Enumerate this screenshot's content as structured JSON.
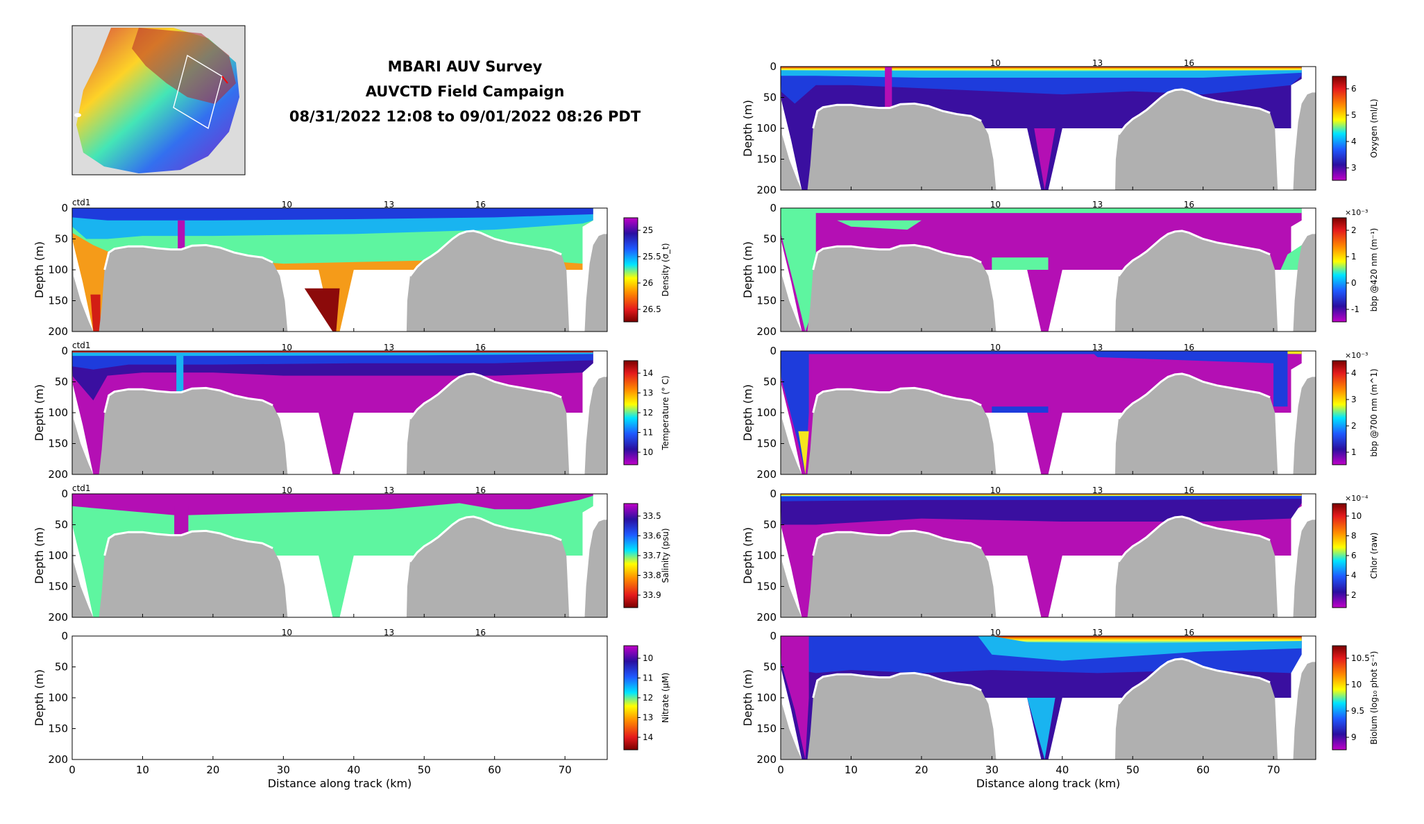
{
  "header": {
    "line1": "MBARI AUV Survey",
    "line2": "AUVCTD Field Campaign",
    "line3": "08/31/2022 12:08 to 09/01/2022 08:26 PDT"
  },
  "axes_common": {
    "ylabel": "Depth (m)",
    "xlabel": "Distance along track (km)",
    "ylim": [
      0,
      200
    ],
    "xlim": [
      0,
      76
    ],
    "yticks": [
      "0",
      "50",
      "100",
      "150",
      "200"
    ],
    "xticks": [
      "0",
      "10",
      "20",
      "30",
      "40",
      "50",
      "60",
      "70"
    ],
    "top_ticks": [
      "10",
      "13",
      "16"
    ],
    "seafloor_color": "#b0b0b0"
  },
  "colors": {
    "magenta": "#b40fb4",
    "indigo": "#3a0fa0",
    "blue": "#1e3cdc",
    "cyan": "#19b4f0",
    "mint": "#5ef5a0",
    "yellow": "#f5e61e",
    "orange": "#f59b19",
    "red": "#d21e14",
    "darkred": "#8c0a0a"
  },
  "chart_data": [
    {
      "id": "density",
      "type": "heatmap",
      "tag": "ctd1",
      "cbar_label": "Density (σ_t)",
      "cbar_ticks": [
        "25",
        "25.5",
        "26",
        "26.5"
      ],
      "cbar_order": "dense-red-bottom"
    },
    {
      "id": "temperature",
      "type": "heatmap",
      "tag": "ctd1",
      "cbar_label": "Temperature (° C)",
      "cbar_ticks": [
        "14",
        "13",
        "12",
        "11",
        "10"
      ]
    },
    {
      "id": "salinity",
      "type": "heatmap",
      "tag": "ctd1",
      "cbar_label": "Salinity (psu)",
      "cbar_ticks": [
        "33.5",
        "33.6",
        "33.7",
        "33.8",
        "33.9"
      ]
    },
    {
      "id": "nitrate",
      "type": "heatmap",
      "tag": "",
      "cbar_label": "Nitrate (μM)",
      "cbar_ticks": [
        "10",
        "11",
        "12",
        "13",
        "14"
      ],
      "empty": true
    },
    {
      "id": "oxygen",
      "type": "heatmap",
      "tag": "",
      "cbar_label": "Oxygen (ml/L)",
      "cbar_ticks": [
        "6",
        "5",
        "4",
        "3"
      ]
    },
    {
      "id": "bbp420",
      "type": "heatmap",
      "tag": "",
      "cbar_label": "bbp @420 nm (m⁻¹)",
      "cbar_exponent": "×10⁻³",
      "cbar_ticks": [
        "2",
        "1",
        "0",
        "-1"
      ]
    },
    {
      "id": "bbp700",
      "type": "heatmap",
      "tag": "",
      "cbar_label": "bbp @700 nm (m^1)",
      "cbar_exponent": "×10⁻³",
      "cbar_ticks": [
        "4",
        "3",
        "2",
        "1"
      ]
    },
    {
      "id": "chlor",
      "type": "heatmap",
      "tag": "",
      "cbar_label": "Chlor (raw)",
      "cbar_exponent": "×10⁻⁴",
      "cbar_ticks": [
        "10",
        "8",
        "6",
        "4",
        "2"
      ]
    },
    {
      "id": "biolum",
      "type": "heatmap",
      "tag": "",
      "cbar_label": "Biolum (log₁₀ phot s⁻¹)",
      "cbar_ticks": [
        "10.5",
        "10",
        "9.5",
        "9"
      ]
    }
  ]
}
